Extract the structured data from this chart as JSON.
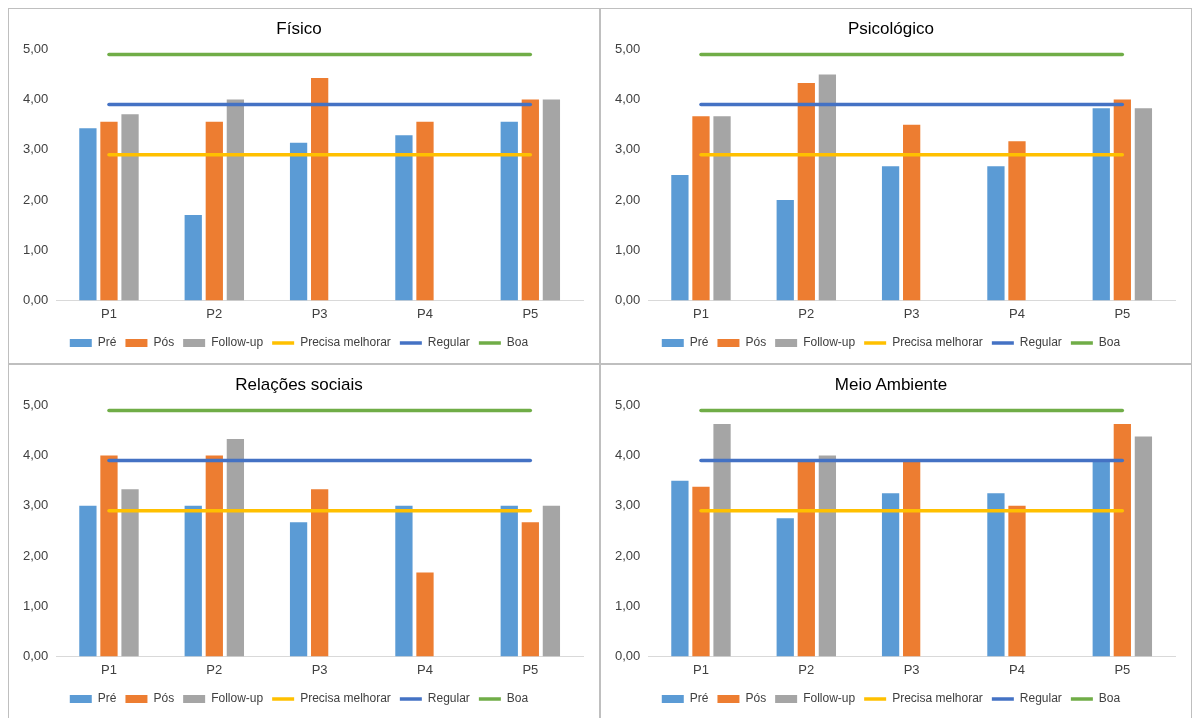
{
  "chart_data": [
    {
      "type": "bar",
      "title": "Físico",
      "categories": [
        "P1",
        "P2",
        "P3",
        "P4",
        "P5"
      ],
      "ylim": [
        0,
        5
      ],
      "yticks": [
        {
          "value": 0,
          "label": "0,00"
        },
        {
          "value": 1,
          "label": "1,00"
        },
        {
          "value": 2,
          "label": "2,00"
        },
        {
          "value": 3,
          "label": "3,00"
        },
        {
          "value": 4,
          "label": "4,00"
        },
        {
          "value": 5,
          "label": "5,00"
        }
      ],
      "grid": false,
      "legend": "bottom",
      "series": [
        {
          "name": "Pré",
          "color": "#5b9bd5",
          "values": [
            3.43,
            1.7,
            3.14,
            3.29,
            3.56
          ]
        },
        {
          "name": "Pós",
          "color": "#ed7d31",
          "values": [
            3.56,
            3.56,
            4.43,
            3.56,
            4.0
          ]
        },
        {
          "name": "Follow-up",
          "color": "#a5a5a5",
          "values": [
            3.71,
            4.0,
            null,
            null,
            4.0
          ]
        },
        {
          "name": "Precisa melhorar",
          "type": "line",
          "color": "#ffc000",
          "values": [
            2.9,
            2.9,
            2.9,
            2.9,
            2.9
          ]
        },
        {
          "name": "Regular",
          "type": "line",
          "color": "#4472c4",
          "values": [
            3.9,
            3.9,
            3.9,
            3.9,
            3.9
          ]
        },
        {
          "name": "Boa",
          "type": "line",
          "color": "#70ad47",
          "values": [
            4.9,
            4.9,
            4.9,
            4.9,
            4.9
          ]
        }
      ]
    },
    {
      "type": "bar",
      "title": "Psicológico",
      "categories": [
        "P1",
        "P2",
        "P3",
        "P4",
        "P5"
      ],
      "ylim": [
        0,
        5
      ],
      "yticks": [
        {
          "value": 0,
          "label": "0,00"
        },
        {
          "value": 1,
          "label": "1,00"
        },
        {
          "value": 2,
          "label": "2,00"
        },
        {
          "value": 3,
          "label": "3,00"
        },
        {
          "value": 4,
          "label": "4,00"
        },
        {
          "value": 5,
          "label": "5,00"
        }
      ],
      "grid": false,
      "legend": "bottom",
      "series": [
        {
          "name": "Pré",
          "color": "#5b9bd5",
          "values": [
            2.5,
            2.0,
            2.67,
            2.67,
            3.83
          ]
        },
        {
          "name": "Pós",
          "color": "#ed7d31",
          "values": [
            3.67,
            4.33,
            3.5,
            3.17,
            4.0
          ]
        },
        {
          "name": "Follow-up",
          "color": "#a5a5a5",
          "values": [
            3.67,
            4.5,
            null,
            null,
            3.83
          ]
        },
        {
          "name": "Precisa melhorar",
          "type": "line",
          "color": "#ffc000",
          "values": [
            2.9,
            2.9,
            2.9,
            2.9,
            2.9
          ]
        },
        {
          "name": "Regular",
          "type": "line",
          "color": "#4472c4",
          "values": [
            3.9,
            3.9,
            3.9,
            3.9,
            3.9
          ]
        },
        {
          "name": "Boa",
          "type": "line",
          "color": "#70ad47",
          "values": [
            4.9,
            4.9,
            4.9,
            4.9,
            4.9
          ]
        }
      ]
    },
    {
      "type": "bar",
      "title": "Relações sociais",
      "categories": [
        "P1",
        "P2",
        "P3",
        "P4",
        "P5"
      ],
      "ylim": [
        0,
        5
      ],
      "yticks": [
        {
          "value": 0,
          "label": "0,00"
        },
        {
          "value": 1,
          "label": "1,00"
        },
        {
          "value": 2,
          "label": "2,00"
        },
        {
          "value": 3,
          "label": "3,00"
        },
        {
          "value": 4,
          "label": "4,00"
        },
        {
          "value": 5,
          "label": "5,00"
        }
      ],
      "grid": false,
      "legend": "bottom",
      "series": [
        {
          "name": "Pré",
          "color": "#5b9bd5",
          "values": [
            3.0,
            3.0,
            2.67,
            3.0,
            3.0
          ]
        },
        {
          "name": "Pós",
          "color": "#ed7d31",
          "values": [
            4.0,
            4.0,
            3.33,
            1.67,
            2.67
          ]
        },
        {
          "name": "Follow-up",
          "color": "#a5a5a5",
          "values": [
            3.33,
            4.33,
            null,
            null,
            3.0
          ]
        },
        {
          "name": "Precisa melhorar",
          "type": "line",
          "color": "#ffc000",
          "values": [
            2.9,
            2.9,
            2.9,
            2.9,
            2.9
          ]
        },
        {
          "name": "Regular",
          "type": "line",
          "color": "#4472c4",
          "values": [
            3.9,
            3.9,
            3.9,
            3.9,
            3.9
          ]
        },
        {
          "name": "Boa",
          "type": "line",
          "color": "#70ad47",
          "values": [
            4.9,
            4.9,
            4.9,
            4.9,
            4.9
          ]
        }
      ]
    },
    {
      "type": "bar",
      "title": "Meio Ambiente",
      "categories": [
        "P1",
        "P2",
        "P3",
        "P4",
        "P5"
      ],
      "ylim": [
        0,
        5
      ],
      "yticks": [
        {
          "value": 0,
          "label": "0,00"
        },
        {
          "value": 1,
          "label": "1,00"
        },
        {
          "value": 2,
          "label": "2,00"
        },
        {
          "value": 3,
          "label": "3,00"
        },
        {
          "value": 4,
          "label": "4,00"
        },
        {
          "value": 5,
          "label": "5,00"
        }
      ],
      "grid": false,
      "legend": "bottom",
      "series": [
        {
          "name": "Pré",
          "color": "#5b9bd5",
          "values": [
            3.5,
            2.75,
            3.25,
            3.25,
            3.88
          ]
        },
        {
          "name": "Pós",
          "color": "#ed7d31",
          "values": [
            3.38,
            3.88,
            3.88,
            3.0,
            4.63
          ]
        },
        {
          "name": "Follow-up",
          "color": "#a5a5a5",
          "values": [
            4.63,
            4.0,
            null,
            null,
            4.38
          ]
        },
        {
          "name": "Precisa melhorar",
          "type": "line",
          "color": "#ffc000",
          "values": [
            2.9,
            2.9,
            2.9,
            2.9,
            2.9
          ]
        },
        {
          "name": "Regular",
          "type": "line",
          "color": "#4472c4",
          "values": [
            3.9,
            3.9,
            3.9,
            3.9,
            3.9
          ]
        },
        {
          "name": "Boa",
          "type": "line",
          "color": "#70ad47",
          "values": [
            4.9,
            4.9,
            4.9,
            4.9,
            4.9
          ]
        }
      ]
    }
  ]
}
